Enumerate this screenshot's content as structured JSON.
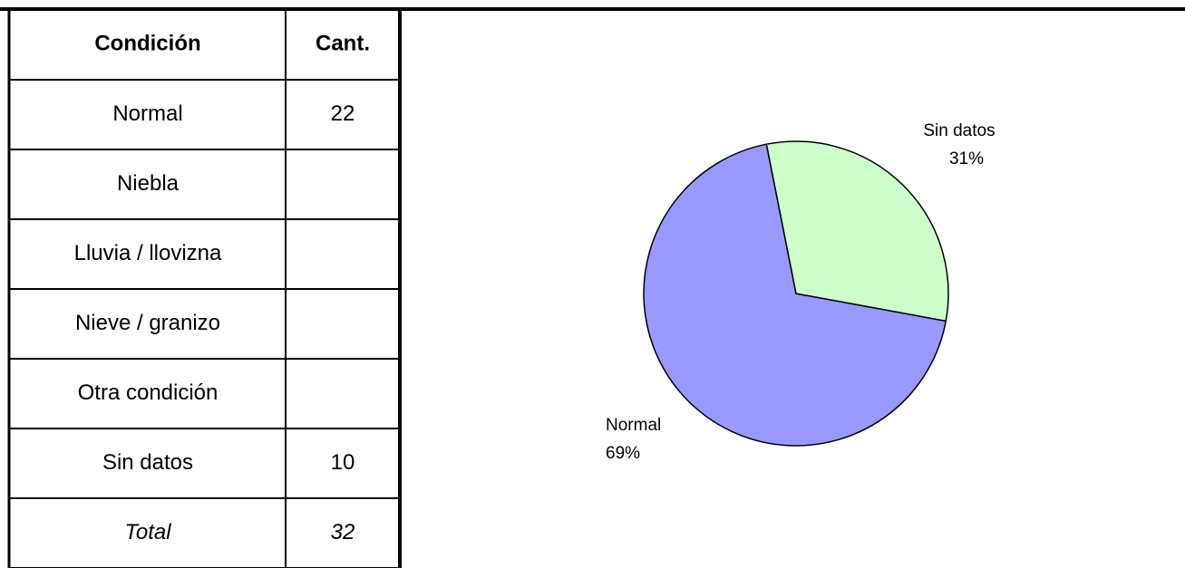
{
  "table": {
    "header": [
      "Condición",
      "Cant."
    ],
    "rows": [
      {
        "label": "Normal",
        "count": 22
      },
      {
        "label": "Niebla"
      },
      {
        "label": "Lluvia / llovizna"
      },
      {
        "label": "Nieve / granizo"
      },
      {
        "label": "Otra condición"
      },
      {
        "label": "Sin datos",
        "count": 10
      },
      {
        "label": "Total",
        "count": 32
      }
    ]
  },
  "chart_data": {
    "type": "pie",
    "categories": [
      "Normal",
      "Sin datos"
    ],
    "values": [
      69,
      31
    ],
    "value_labels": [
      "69%",
      "31%"
    ],
    "colors": [
      "#9999ff",
      "#ccffcc"
    ]
  }
}
